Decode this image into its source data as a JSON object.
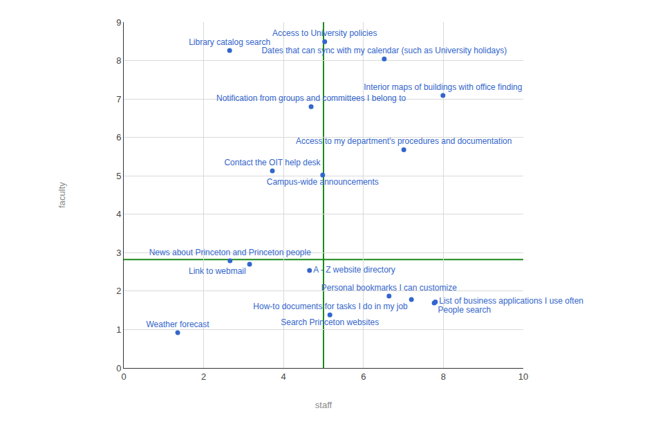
{
  "chart_data": {
    "type": "scatter",
    "x_label": "staff",
    "y_label": "faculty",
    "x": [
      5.03,
      2.65,
      6.52,
      7.99,
      4.69,
      7.01,
      3.72,
      4.98,
      2.66,
      3.15,
      4.65,
      6.64,
      7.2,
      7.77,
      7.8,
      5.16,
      1.35
    ],
    "values": [
      8.49,
      8.26,
      8.04,
      7.09,
      6.8,
      5.68,
      5.13,
      5.02,
      2.79,
      2.7,
      2.54,
      1.87,
      1.78,
      1.69,
      1.72,
      1.38,
      0.92
    ],
    "point_labels": [
      "Access to University policies",
      "Library catalog search",
      "Dates that can sync with my calendar (such as University holidays)",
      "Interior maps of buildings with office finding",
      "Notification from groups and committees I belong to",
      "Access to my department's procedures and documentation",
      "Contact the OIT help desk",
      "Campus-wide announcements",
      "News about Princeton and Princeton people",
      "Link to webmail",
      "A - Z website directory",
      "Personal bookmarks I can customize",
      "How-to documents for tasks I do in my job",
      "People search",
      "List of business applications I use often",
      "Search Princeton websites",
      "Weather forecast"
    ],
    "color": "#3366cc",
    "vertical_line": 5.0,
    "horizontal_line": 2.82,
    "xlim": [
      0,
      10
    ],
    "xticks": [
      0,
      2,
      4,
      6,
      8,
      10
    ],
    "ylim": [
      0,
      9
    ],
    "yticks": [
      0,
      1,
      2,
      3,
      4,
      5,
      6,
      7,
      8,
      9
    ],
    "grid": true,
    "marker": "circle"
  }
}
